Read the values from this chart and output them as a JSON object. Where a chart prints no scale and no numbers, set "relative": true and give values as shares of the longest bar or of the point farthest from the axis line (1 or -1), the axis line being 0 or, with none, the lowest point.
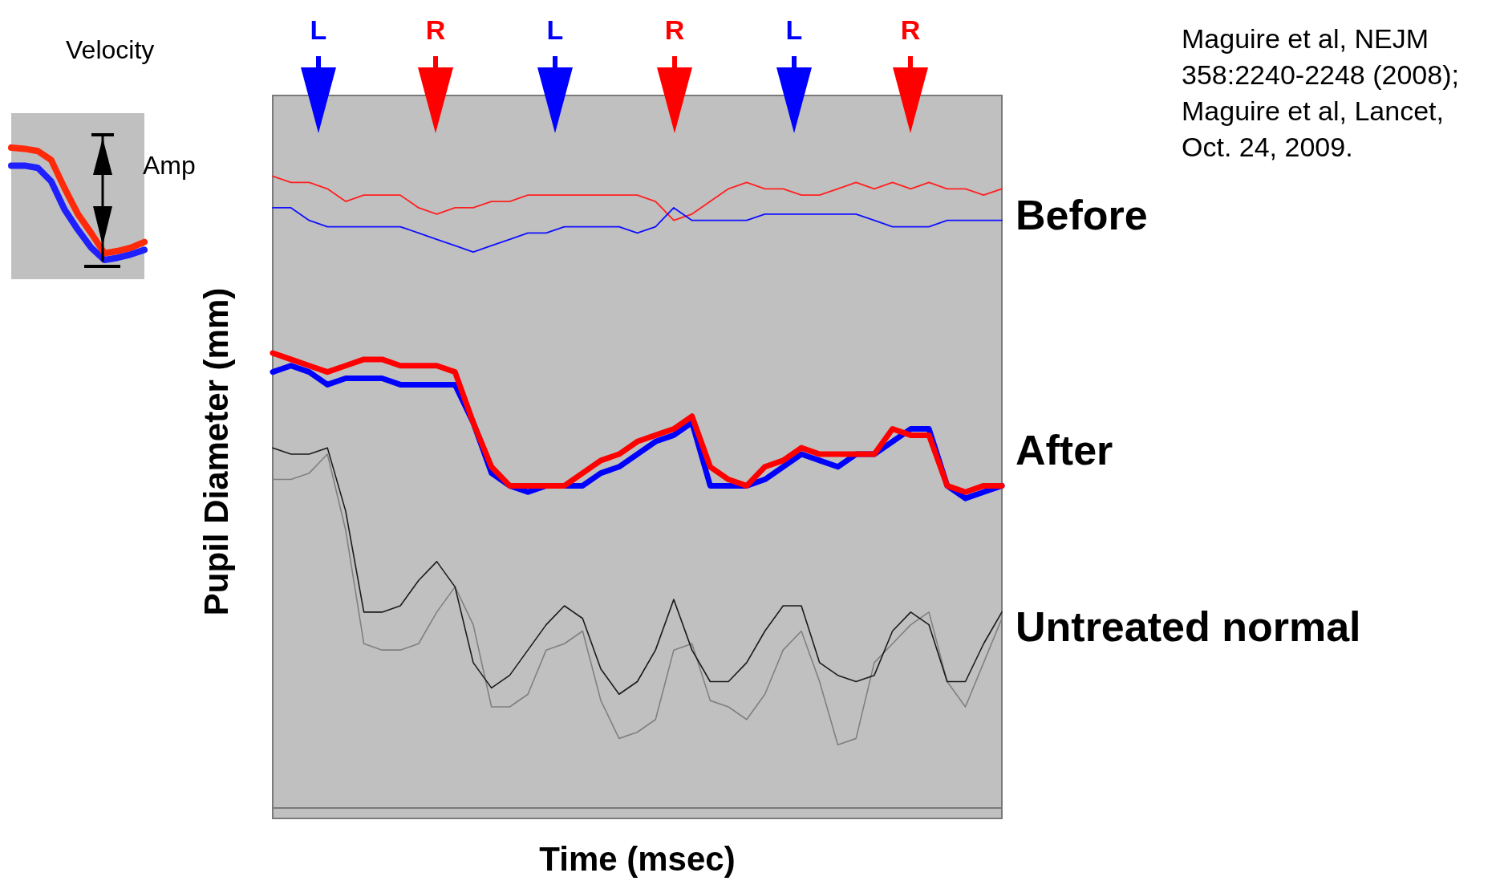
{
  "chart_data": [
    {
      "type": "line",
      "xlabel": "Time (msec)",
      "ylabel": "Pupil Diameter (mm)",
      "relative": true,
      "grid": false,
      "marker": "none",
      "line_style": "solid",
      "categories": [
        null,
        null,
        null,
        null,
        null,
        null,
        null,
        null,
        null,
        null,
        null,
        null,
        null,
        null,
        null,
        null,
        null,
        null,
        null,
        null,
        null,
        null,
        null,
        null,
        null,
        null,
        null,
        null,
        null,
        null,
        null,
        null,
        null,
        null,
        null,
        null,
        null,
        null,
        null,
        null,
        null
      ],
      "series": [
        {
          "color": "#ff2020",
          "values": [
            1.0,
            0.99,
            0.99,
            0.98,
            0.96,
            0.97,
            0.97,
            0.97,
            0.95,
            0.94,
            0.95,
            0.95,
            0.96,
            0.96,
            0.97,
            0.97,
            0.97,
            0.97,
            0.97,
            0.97,
            0.97,
            0.96,
            0.93,
            0.94,
            0.96,
            0.98,
            0.99,
            0.98,
            0.98,
            0.97,
            0.97,
            0.98,
            0.99,
            0.98,
            0.99,
            0.98,
            0.99,
            0.98,
            0.98,
            0.97,
            0.98
          ]
        },
        {
          "color": "#1010ff",
          "values": [
            0.95,
            0.95,
            0.93,
            0.92,
            0.92,
            0.92,
            0.92,
            0.92,
            0.91,
            0.9,
            0.89,
            0.88,
            0.89,
            0.9,
            0.91,
            0.91,
            0.92,
            0.92,
            0.92,
            0.92,
            0.91,
            0.92,
            0.95,
            0.93,
            0.93,
            0.93,
            0.93,
            0.94,
            0.94,
            0.94,
            0.94,
            0.94,
            0.94,
            0.93,
            0.92,
            0.92,
            0.92,
            0.93,
            0.93,
            0.93,
            0.93
          ]
        },
        {
          "color": "#0000ff",
          "values": [
            0.69,
            0.7,
            0.69,
            0.67,
            0.68,
            0.68,
            0.68,
            0.67,
            0.67,
            0.67,
            0.67,
            0.61,
            0.53,
            0.51,
            0.5,
            0.51,
            0.51,
            0.51,
            0.53,
            0.54,
            0.56,
            0.58,
            0.59,
            0.61,
            0.51,
            0.51,
            0.51,
            0.52,
            0.54,
            0.56,
            0.55,
            0.54,
            0.56,
            0.56,
            0.58,
            0.6,
            0.6,
            0.51,
            0.49,
            0.5,
            0.51
          ]
        },
        {
          "color": "#ff0000",
          "values": [
            0.72,
            0.71,
            0.7,
            0.69,
            0.7,
            0.71,
            0.71,
            0.7,
            0.7,
            0.7,
            0.69,
            0.61,
            0.54,
            0.51,
            0.51,
            0.51,
            0.51,
            0.53,
            0.55,
            0.56,
            0.58,
            0.59,
            0.6,
            0.62,
            0.54,
            0.52,
            0.51,
            0.54,
            0.55,
            0.57,
            0.56,
            0.56,
            0.56,
            0.56,
            0.6,
            0.59,
            0.59,
            0.51,
            0.5,
            0.51,
            0.51
          ]
        },
        {
          "color": "#808080",
          "values": [
            0.52,
            0.52,
            0.53,
            0.56,
            0.44,
            0.26,
            0.25,
            0.25,
            0.26,
            0.31,
            0.35,
            0.29,
            0.16,
            0.16,
            0.18,
            0.25,
            0.26,
            0.28,
            0.17,
            0.11,
            0.12,
            0.14,
            0.25,
            0.26,
            0.17,
            0.16,
            0.14,
            0.18,
            0.25,
            0.28,
            0.2,
            0.1,
            0.11,
            0.23,
            0.26,
            0.29,
            0.31,
            0.2,
            0.16,
            0.23,
            0.3
          ]
        },
        {
          "color": "#1a1a1a",
          "values": [
            0.57,
            0.56,
            0.56,
            0.57,
            0.47,
            0.31,
            0.31,
            0.32,
            0.36,
            0.39,
            0.35,
            0.23,
            0.19,
            0.21,
            0.25,
            0.29,
            0.32,
            0.3,
            0.22,
            0.18,
            0.2,
            0.25,
            0.33,
            0.25,
            0.2,
            0.2,
            0.23,
            0.28,
            0.32,
            0.32,
            0.23,
            0.21,
            0.2,
            0.21,
            0.28,
            0.31,
            0.29,
            0.2,
            0.2,
            0.26,
            0.31
          ]
        }
      ],
      "annotations": [
        "L",
        "R",
        "L",
        "R",
        "L",
        "R",
        "Before",
        "After",
        "Untreated normal",
        "Maguire et al, NEJM 358:2240-2248 (2008); Maguire et al, Lancet, Oct. 24, 2009."
      ]
    },
    {
      "type": "line",
      "relative": true,
      "grid": false,
      "marker": "none",
      "line_style": "solid",
      "categories": [
        null,
        null,
        null,
        null,
        null,
        null,
        null,
        null,
        null,
        null,
        null
      ],
      "series": [
        {
          "color": "#2020ff",
          "values": [
            0.84,
            0.84,
            0.82,
            0.7,
            0.45,
            0.27,
            0.11,
            0.0,
            0.02,
            0.05,
            0.09
          ]
        },
        {
          "color": "#ff2a0a",
          "values": [
            1.0,
            0.99,
            0.97,
            0.89,
            0.64,
            0.41,
            0.24,
            0.06,
            0.08,
            0.11,
            0.16
          ]
        }
      ],
      "annotations": [
        "Velocity",
        "Amp"
      ]
    }
  ]
}
